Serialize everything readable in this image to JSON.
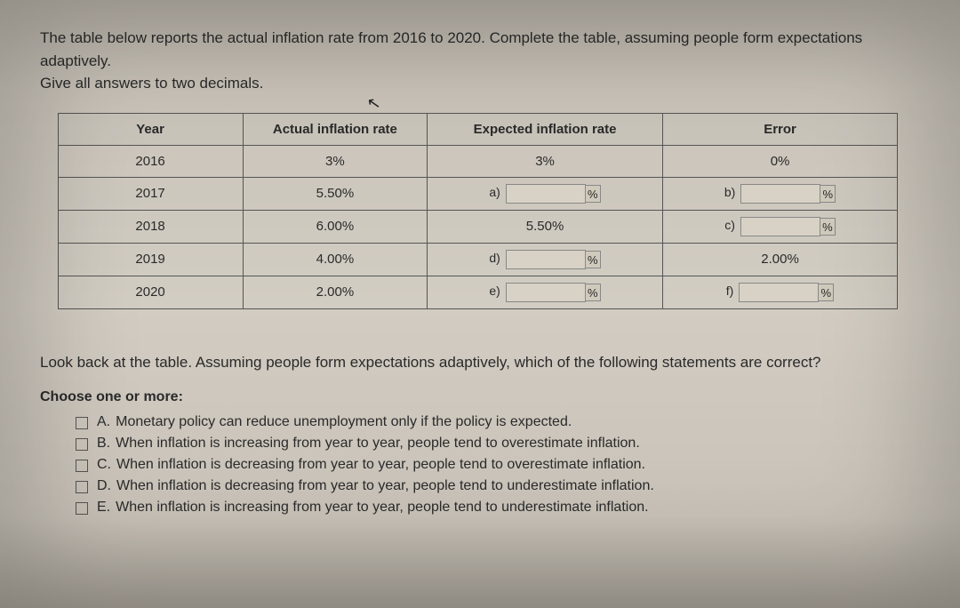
{
  "instructions": {
    "line1": "The table below reports the actual inflation rate from 2016 to 2020. Complete the table, assuming people form expectations adaptively.",
    "line2": "Give all answers to two decimals."
  },
  "table": {
    "headers": {
      "year": "Year",
      "actual": "Actual inflation rate",
      "expected": "Expected inflation rate",
      "error": "Error"
    },
    "rows": [
      {
        "year": "2016",
        "actual": "3%",
        "expected_text": "3%",
        "expected_label": "",
        "expected_input": false,
        "error_text": "0%",
        "error_label": "",
        "error_input": false
      },
      {
        "year": "2017",
        "actual": "5.50%",
        "expected_text": "",
        "expected_label": "a)",
        "expected_input": true,
        "error_text": "",
        "error_label": "b)",
        "error_input": true
      },
      {
        "year": "2018",
        "actual": "6.00%",
        "expected_text": "5.50%",
        "expected_label": "",
        "expected_input": false,
        "error_text": "",
        "error_label": "c)",
        "error_input": true
      },
      {
        "year": "2019",
        "actual": "4.00%",
        "expected_text": "",
        "expected_label": "d)",
        "expected_input": true,
        "error_text": "2.00%",
        "error_label": "",
        "error_input": false
      },
      {
        "year": "2020",
        "actual": "2.00%",
        "expected_text": "",
        "expected_label": "e)",
        "expected_input": true,
        "error_text": "",
        "error_label": "f)",
        "error_input": true
      }
    ],
    "pct": "%"
  },
  "followup": "Look back at the table. Assuming people form expectations adaptively, which of the following statements are correct?",
  "choose": "Choose one or more:",
  "options": [
    {
      "letter": "A.",
      "text": "Monetary policy can reduce unemployment only if the policy is expected."
    },
    {
      "letter": "B.",
      "text": "When inflation is increasing from year to year, people tend to overestimate inflation."
    },
    {
      "letter": "C.",
      "text": "When inflation is decreasing from year to year, people tend to overestimate inflation."
    },
    {
      "letter": "D.",
      "text": "When inflation is decreasing from year to year, people tend to underestimate inflation."
    },
    {
      "letter": "E.",
      "text": "When inflation is increasing from year to year, people tend to underestimate inflation."
    }
  ]
}
